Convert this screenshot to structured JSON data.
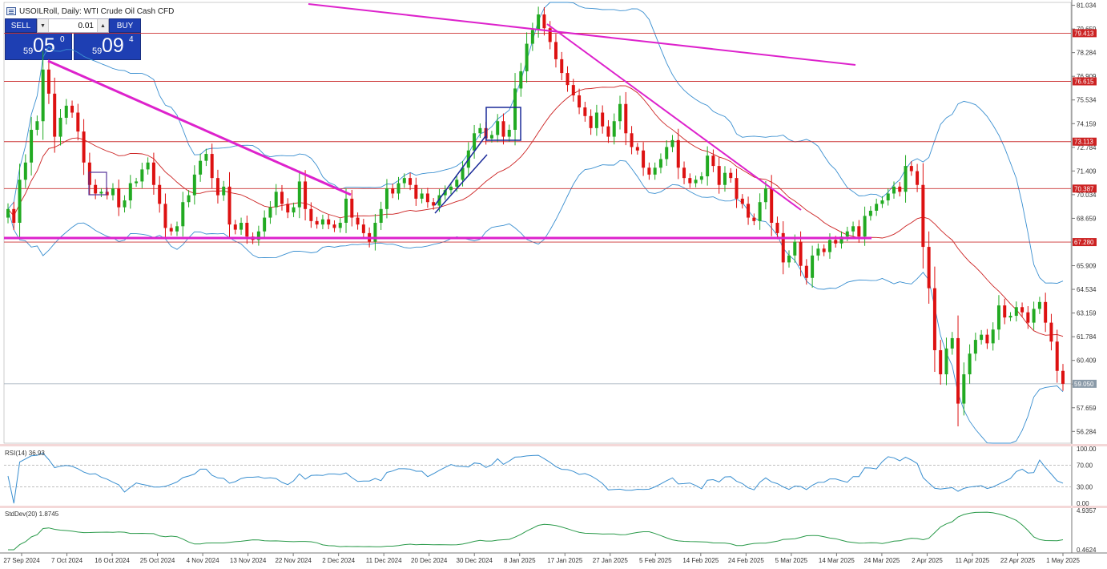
{
  "window": {
    "title": "USOILRoll, Daily:  WTI Crude Oil Cash CFD"
  },
  "trade_panel": {
    "sell_label": "SELL",
    "buy_label": "BUY",
    "lot": "0.01",
    "sell_price_small": "59",
    "sell_price_big": "05",
    "sell_price_sup": "0",
    "buy_price_small": "59",
    "buy_price_big": "09",
    "buy_price_sup": "4"
  },
  "price_axis": {
    "ticks": [
      "81.034",
      "79.659",
      "78.284",
      "76.909",
      "75.534",
      "74.159",
      "72.784",
      "71.409",
      "70.034",
      "68.659",
      "67.284",
      "65.909",
      "64.534",
      "63.159",
      "61.784",
      "60.409",
      "59.034",
      "57.659",
      "56.284"
    ],
    "min": 55.6,
    "max": 81.2
  },
  "levels": [
    {
      "value": 79.413,
      "label": "79.413"
    },
    {
      "value": 76.615,
      "label": "76.615"
    },
    {
      "value": 73.113,
      "label": "73.113"
    },
    {
      "value": 70.387,
      "label": "70.387"
    },
    {
      "value": 67.28,
      "label": "67.280"
    }
  ],
  "current_price": {
    "value": 59.05,
    "label": "59.050"
  },
  "date_axis": [
    "27 Sep 2024",
    "7 Oct 2024",
    "16 Oct 2024",
    "25 Oct 2024",
    "4 Nov 2024",
    "13 Nov 2024",
    "22 Nov 2024",
    "2 Dec 2024",
    "11 Dec 2024",
    "20 Dec 2024",
    "30 Dec 2024",
    "8 Jan 2025",
    "17 Jan 2025",
    "27 Jan 2025",
    "5 Feb 2025",
    "14 Feb 2025",
    "24 Feb 2025",
    "5 Mar 2025",
    "14 Mar 2025",
    "24 Mar 2025",
    "2 Apr 2025",
    "11 Apr 2025",
    "22 Apr 2025",
    "1 May 2025"
  ],
  "rsi": {
    "label": "RSI(14) 36.93",
    "ticks": [
      "100.00",
      "70.00",
      "30.00",
      "0.00"
    ]
  },
  "stddev": {
    "label": "StdDev(20) 1.8745",
    "ticks": [
      "4.9357",
      "0.4624"
    ]
  },
  "colors": {
    "bull": "#22aa22",
    "bear": "#dd1111",
    "trend": "#dd22cc",
    "channel": "#1a2a99",
    "bollinger": "#3a8fd0",
    "ma": "#cc2222",
    "level": "#cc3333"
  },
  "chart_data": {
    "type": "candlestick",
    "closes": [
      69.2,
      68.4,
      70.9,
      71.9,
      73.8,
      74.3,
      77.3,
      75.9,
      73.4,
      74.5,
      75.2,
      74.8,
      73.7,
      71.9,
      70.6,
      70.1,
      70.2,
      70.0,
      70.4,
      69.3,
      69.7,
      70.7,
      70.8,
      71.5,
      71.9,
      70.6,
      69.5,
      68.1,
      67.9,
      68.2,
      69.6,
      70.0,
      71.2,
      72.0,
      72.4,
      71.0,
      70.0,
      70.5,
      68.3,
      68.0,
      68.4,
      67.6,
      67.4,
      67.9,
      68.7,
      69.3,
      70.2,
      69.5,
      69.0,
      69.3,
      70.8,
      69.2,
      68.5,
      68.3,
      68.6,
      68.3,
      68.1,
      68.4,
      69.8,
      68.7,
      68.3,
      67.8,
      67.3,
      68.4,
      69.2,
      70.4,
      70.1,
      70.7,
      71.0,
      70.6,
      69.8,
      70.1,
      69.6,
      69.4,
      70.0,
      70.3,
      70.5,
      70.9,
      71.6,
      72.6,
      73.6,
      73.9,
      73.3,
      73.5,
      74.3,
      73.4,
      73.8,
      76.2,
      77.2,
      78.8,
      79.6,
      80.5,
      79.7,
      78.9,
      77.9,
      77.1,
      76.4,
      75.8,
      75.1,
      74.6,
      73.9,
      74.8,
      74.0,
      73.4,
      74.3,
      75.3,
      73.6,
      72.8,
      72.6,
      71.6,
      71.2,
      71.6,
      72.1,
      72.8,
      73.2,
      71.6,
      71.0,
      70.7,
      70.9,
      71.1,
      72.3,
      71.7,
      70.6,
      71.3,
      71.0,
      69.8,
      69.5,
      68.7,
      68.5,
      69.6,
      70.4,
      68.4,
      67.8,
      66.1,
      66.5,
      67.3,
      65.9,
      65.2,
      66.5,
      66.9,
      66.7,
      67.4,
      67.2,
      67.6,
      67.9,
      68.2,
      67.6,
      68.8,
      69.1,
      69.5,
      69.7,
      70.1,
      70.5,
      70.2,
      71.7,
      71.4,
      70.6,
      67.0,
      64.6,
      61.0,
      59.6,
      61.1,
      61.7,
      57.9,
      59.6,
      60.8,
      61.6,
      61.9,
      61.4,
      62.2,
      63.6,
      62.9,
      63.0,
      63.5,
      63.2,
      62.6,
      63.4,
      63.8,
      62.6,
      61.5,
      59.8,
      59.05
    ],
    "x_labels": [
      "27 Sep 2024",
      "7 Oct 2024",
      "16 Oct 2024",
      "25 Oct 2024",
      "4 Nov 2024",
      "13 Nov 2024",
      "22 Nov 2024",
      "2 Dec 2024",
      "11 Dec 2024",
      "20 Dec 2024",
      "30 Dec 2024",
      "8 Jan 2025",
      "17 Jan 2025",
      "27 Jan 2025",
      "5 Feb 2025",
      "14 Feb 2025",
      "24 Feb 2025",
      "5 Mar 2025",
      "14 Mar 2025",
      "24 Mar 2025",
      "2 Apr 2025",
      "11 Apr 2025",
      "22 Apr 2025",
      "1 May 2025"
    ],
    "ylim": [
      55.6,
      81.2
    ]
  }
}
